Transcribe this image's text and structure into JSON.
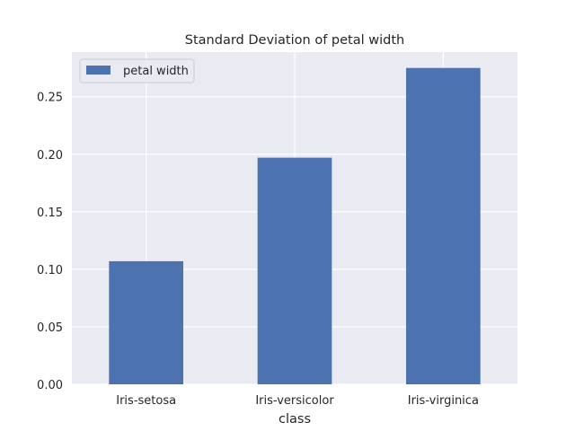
{
  "chart_data": {
    "type": "bar",
    "title": "Standard Deviation of petal width",
    "xlabel": "class",
    "ylabel": "",
    "categories": [
      "Iris-setosa",
      "Iris-versicolor",
      "Iris-virginica"
    ],
    "series": [
      {
        "name": "petal width",
        "values": [
          0.107,
          0.197,
          0.275
        ],
        "color": "#4c72b0"
      }
    ],
    "ylim": [
      0,
      0.2888
    ],
    "yticks": [
      0.0,
      0.05,
      0.1,
      0.15,
      0.2,
      0.25
    ],
    "ytick_labels": [
      "0.00",
      "0.05",
      "0.10",
      "0.15",
      "0.20",
      "0.25"
    ],
    "grid": true,
    "legend": "top-left",
    "background_color": "#eaeaf2",
    "grid_color": "#ffffff"
  }
}
